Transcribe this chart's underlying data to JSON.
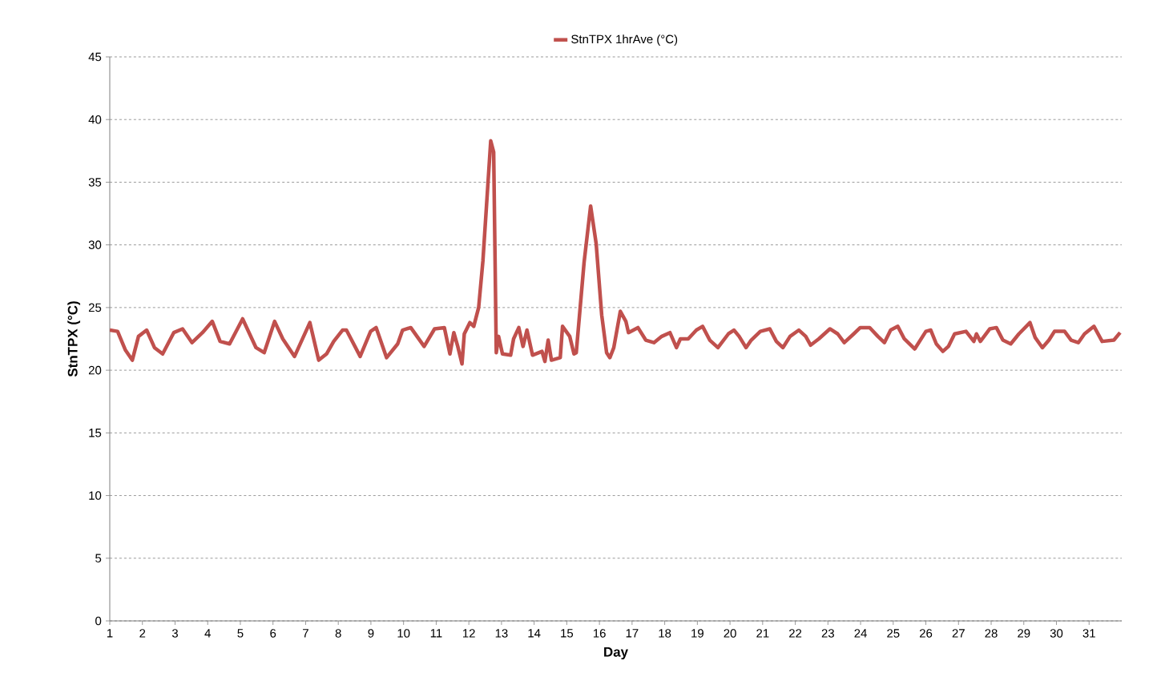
{
  "chart_data": {
    "type": "line",
    "xlabel": "Day",
    "ylabel": "StnTPX (°C)",
    "xlim": [
      1,
      32
    ],
    "xticks": [
      1,
      2,
      3,
      4,
      5,
      6,
      7,
      8,
      9,
      10,
      11,
      12,
      13,
      14,
      15,
      16,
      17,
      18,
      19,
      20,
      21,
      22,
      23,
      24,
      25,
      26,
      27,
      28,
      29,
      30,
      31
    ],
    "ylim": [
      0,
      45
    ],
    "yticks": [
      0,
      5,
      10,
      15,
      20,
      25,
      30,
      35,
      40,
      45
    ],
    "grid": "y",
    "legend": "top",
    "marker": "none",
    "line_style": "solid",
    "series": [
      {
        "name": "StnTPX 1hrAve (°C)",
        "color": "#c0504d",
        "x": [
          1.0,
          1.24,
          1.48,
          1.69,
          1.88,
          2.13,
          2.37,
          2.62,
          2.96,
          3.23,
          3.52,
          3.84,
          4.14,
          4.38,
          4.67,
          5.07,
          5.48,
          5.73,
          6.05,
          6.3,
          6.66,
          7.13,
          7.4,
          7.64,
          7.86,
          8.13,
          8.25,
          8.67,
          8.99,
          9.16,
          9.48,
          9.82,
          9.97,
          10.22,
          10.63,
          10.95,
          11.25,
          11.42,
          11.54,
          11.66,
          11.79,
          11.86,
          12.03,
          12.15,
          12.3,
          12.43,
          12.67,
          12.76,
          12.84,
          12.91,
          13.03,
          13.28,
          13.37,
          13.53,
          13.66,
          13.78,
          13.95,
          14.24,
          14.33,
          14.43,
          14.53,
          14.8,
          14.87,
          15.09,
          15.22,
          15.29,
          15.53,
          15.73,
          15.9,
          16.07,
          16.22,
          16.32,
          16.44,
          16.64,
          16.81,
          16.89,
          17.18,
          17.42,
          17.67,
          17.91,
          18.16,
          18.36,
          18.48,
          18.72,
          18.97,
          19.16,
          19.38,
          19.63,
          19.95,
          20.12,
          20.28,
          20.49,
          20.65,
          20.93,
          21.22,
          21.42,
          21.62,
          21.84,
          22.11,
          22.32,
          22.47,
          22.72,
          23.06,
          23.3,
          23.5,
          23.79,
          23.99,
          24.28,
          24.53,
          24.73,
          24.92,
          25.14,
          25.34,
          25.66,
          26.0,
          26.15,
          26.32,
          26.52,
          26.69,
          26.88,
          27.23,
          27.47,
          27.55,
          27.67,
          27.96,
          28.16,
          28.36,
          28.6,
          28.85,
          29.19,
          29.35,
          29.57,
          29.77,
          29.94,
          30.25,
          30.45,
          30.67,
          30.86,
          31.15,
          31.4,
          31.76,
          31.95
        ],
        "values": [
          23.2,
          23.1,
          21.6,
          20.8,
          22.7,
          23.2,
          21.8,
          21.3,
          23.0,
          23.3,
          22.2,
          23.0,
          23.9,
          22.3,
          22.1,
          24.1,
          21.8,
          21.4,
          23.9,
          22.5,
          21.1,
          23.8,
          20.8,
          21.3,
          22.3,
          23.2,
          23.2,
          21.1,
          23.1,
          23.4,
          21.0,
          22.1,
          23.2,
          23.4,
          21.9,
          23.3,
          23.4,
          21.3,
          23.0,
          21.9,
          20.5,
          22.9,
          23.8,
          23.5,
          25.0,
          28.7,
          38.3,
          37.4,
          21.4,
          22.7,
          21.3,
          21.2,
          22.5,
          23.4,
          21.9,
          23.2,
          21.2,
          21.5,
          20.7,
          22.4,
          20.8,
          21.0,
          23.5,
          22.7,
          21.3,
          21.4,
          28.6,
          33.1,
          30.1,
          24.4,
          21.4,
          21.0,
          21.8,
          24.7,
          23.9,
          23.0,
          23.4,
          22.4,
          22.2,
          22.7,
          23.0,
          21.8,
          22.5,
          22.5,
          23.2,
          23.5,
          22.4,
          21.8,
          22.9,
          23.2,
          22.7,
          21.8,
          22.4,
          23.1,
          23.3,
          22.3,
          21.8,
          22.7,
          23.2,
          22.7,
          22.0,
          22.5,
          23.3,
          22.9,
          22.2,
          22.9,
          23.4,
          23.4,
          22.7,
          22.2,
          23.2,
          23.5,
          22.5,
          21.7,
          23.1,
          23.2,
          22.1,
          21.5,
          21.9,
          22.9,
          23.1,
          22.3,
          22.9,
          22.3,
          23.3,
          23.4,
          22.4,
          22.1,
          22.9,
          23.8,
          22.6,
          21.8,
          22.4,
          23.1,
          23.1,
          22.4,
          22.2,
          22.9,
          23.5,
          22.3,
          22.4,
          23.0
        ]
      }
    ]
  }
}
